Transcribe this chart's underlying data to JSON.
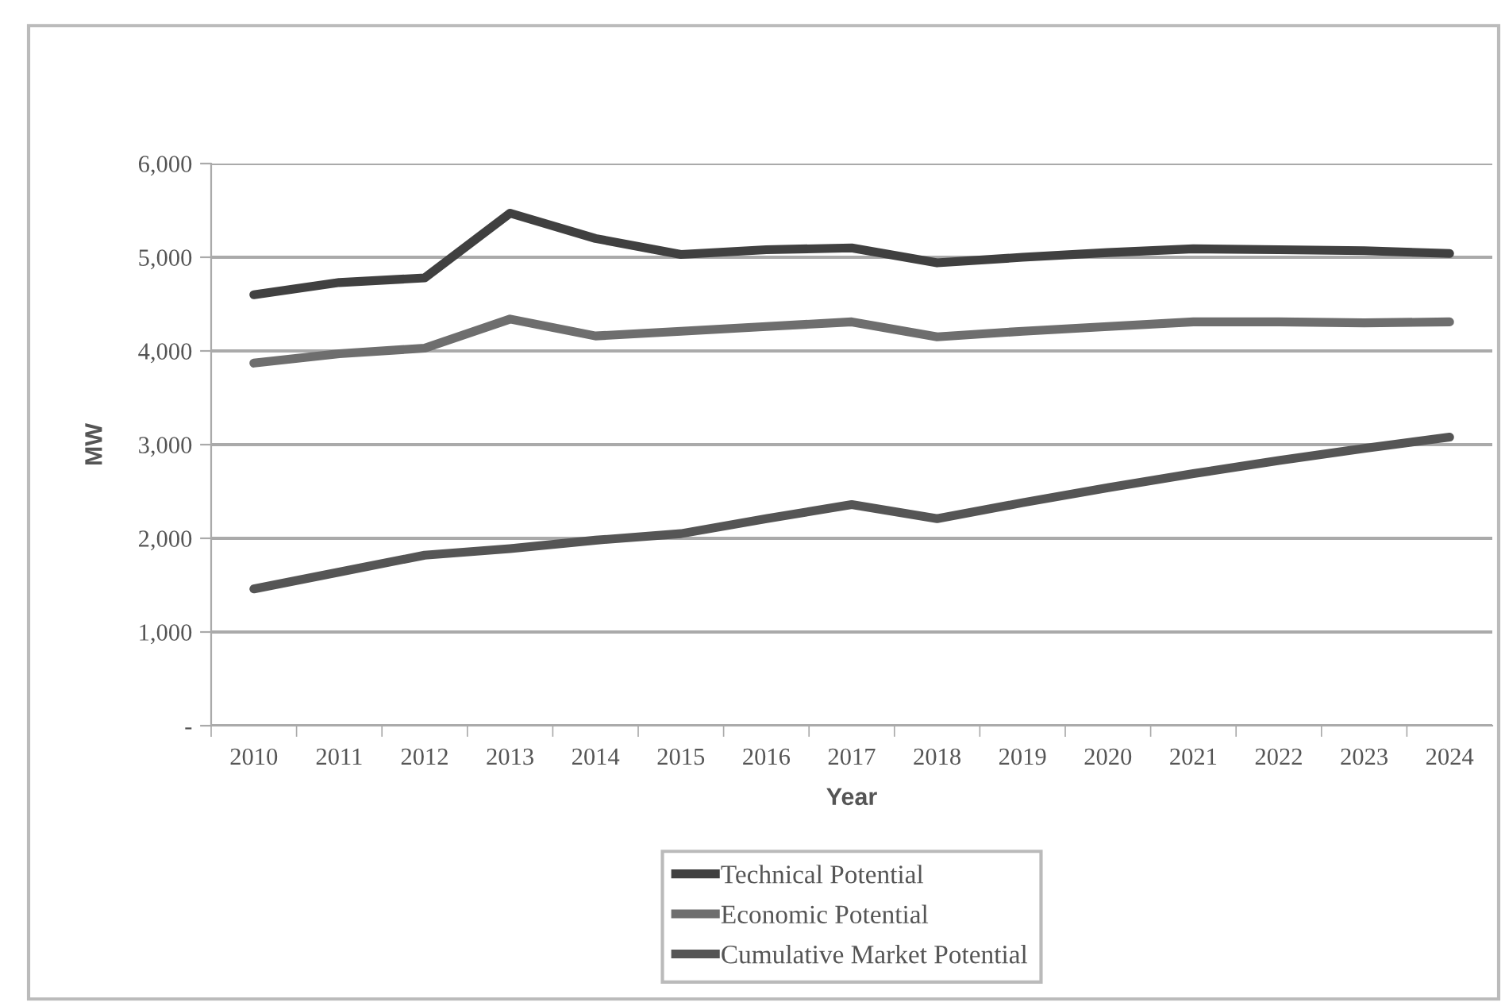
{
  "chart_data": {
    "type": "line",
    "xlabel": "Year",
    "ylabel": "MW",
    "categories": [
      "2010",
      "2011",
      "2012",
      "2013",
      "2014",
      "2015",
      "2016",
      "2017",
      "2018",
      "2019",
      "2020",
      "2021",
      "2022",
      "2023",
      "2024"
    ],
    "series": [
      {
        "name": "Technical Potential",
        "color": "#404040",
        "values": [
          4600,
          4730,
          4780,
          5470,
          5200,
          5030,
          5080,
          5100,
          4940,
          5000,
          5050,
          5090,
          5080,
          5070,
          5040
        ]
      },
      {
        "name": "Economic Potential",
        "color": "#6e6e6e",
        "values": [
          3870,
          3970,
          4030,
          4340,
          4160,
          4210,
          4260,
          4310,
          4150,
          4210,
          4260,
          4310,
          4310,
          4300,
          4310
        ]
      },
      {
        "name": "Cumulative Market Potential",
        "color": "#555555",
        "values": [
          1460,
          1640,
          1820,
          1890,
          1980,
          2050,
          2210,
          2360,
          2210,
          2380,
          2540,
          2690,
          2830,
          2960,
          3080
        ]
      }
    ],
    "ylim": [
      0,
      6000
    ],
    "yticks": [
      {
        "value": 0,
        "label": "-"
      },
      {
        "value": 1000,
        "label": "1,000"
      },
      {
        "value": 2000,
        "label": "2,000"
      },
      {
        "value": 3000,
        "label": "3,000"
      },
      {
        "value": 4000,
        "label": "4,000"
      },
      {
        "value": 5000,
        "label": "5,000"
      },
      {
        "value": 6000,
        "label": "6,000"
      }
    ],
    "grid": "y",
    "legend": "bottom",
    "marker": "none",
    "line_style": "solid"
  }
}
